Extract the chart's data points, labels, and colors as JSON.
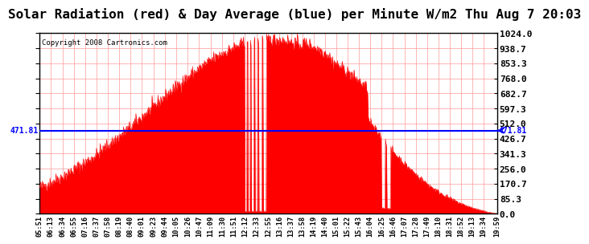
{
  "title": "Solar Radiation (red) & Day Average (blue) per Minute W/m2 Thu Aug 7 20:03",
  "copyright": "Copyright 2008 Cartronics.com",
  "y_max": 1024.0,
  "y_min": 0.0,
  "y_ticks": [
    0.0,
    85.3,
    170.7,
    256.0,
    341.3,
    426.7,
    512.0,
    597.3,
    682.7,
    768.0,
    853.3,
    938.7,
    1024.0
  ],
  "day_average": 471.81,
  "x_labels": [
    "05:51",
    "06:13",
    "06:34",
    "06:55",
    "07:16",
    "07:37",
    "07:58",
    "08:19",
    "08:40",
    "09:01",
    "09:23",
    "09:44",
    "10:05",
    "10:26",
    "10:47",
    "11:09",
    "11:30",
    "11:51",
    "12:12",
    "12:33",
    "12:55",
    "13:16",
    "13:37",
    "13:58",
    "14:19",
    "14:40",
    "15:01",
    "15:22",
    "15:43",
    "16:04",
    "16:25",
    "16:46",
    "17:07",
    "17:28",
    "17:49",
    "18:10",
    "18:31",
    "18:52",
    "19:13",
    "19:34",
    "19:59"
  ],
  "fill_color": "#FF0000",
  "line_color": "#FF0000",
  "avg_line_color": "#0000FF",
  "background_color": "#FFFFFF",
  "grid_color": "#FF9999",
  "title_fontsize": 11.5,
  "tick_fontsize": 8.0,
  "copyright_fontsize": 6.5
}
